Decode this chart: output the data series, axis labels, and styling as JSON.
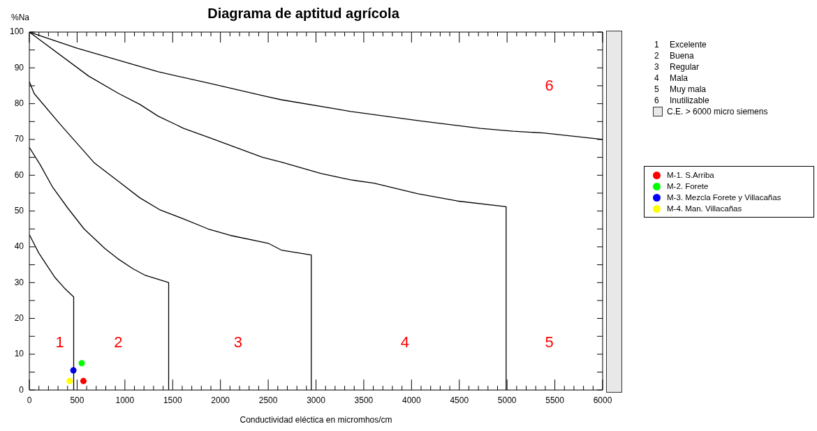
{
  "chart_data": {
    "type": "scatter",
    "title": "Diagrama de aptitud agrícola",
    "xlabel": "Conductividad eléctica en micromhos/cm",
    "ylabel": "%Na",
    "xlim": [
      0,
      6000
    ],
    "xticks": [
      0,
      500,
      1000,
      1500,
      2000,
      2500,
      3000,
      3500,
      4000,
      4500,
      5000,
      5500,
      6000
    ],
    "ylim": [
      0,
      100
    ],
    "yticks": [
      0,
      10,
      20,
      30,
      40,
      50,
      60,
      70,
      80,
      90,
      100
    ],
    "grid": false,
    "legend": "right",
    "series": [
      {
        "type": "line",
        "color": "#000000",
        "marker": "none",
        "x": [
          0,
          100,
          269,
          366,
          464,
          464
        ],
        "values": [
          43.4,
          38.2,
          31.4,
          28.5,
          26.0,
          0
        ]
      },
      {
        "type": "line",
        "color": "#000000",
        "marker": "none",
        "x": [
          0,
          112,
          245,
          403,
          573,
          792,
          925,
          1083,
          1216,
          1458,
          1458
        ],
        "values": [
          67.8,
          63.0,
          56.6,
          50.8,
          45.0,
          39.5,
          36.7,
          33.9,
          32.0,
          30.0,
          0
        ]
      },
      {
        "type": "line",
        "color": "#000000",
        "marker": "none",
        "x": [
          0,
          51,
          330,
          682,
          937,
          1156,
          1362,
          1641,
          1871,
          2102,
          2500,
          2636,
          2951,
          2951
        ],
        "values": [
          86.1,
          82.8,
          74.0,
          63.4,
          58.2,
          53.7,
          50.4,
          47.5,
          45.0,
          43.2,
          41.0,
          39.1,
          37.7,
          0
        ]
      },
      {
        "type": "line",
        "color": "#000000",
        "marker": "none",
        "x": [
          0,
          621,
          937,
          1156,
          1349,
          1616,
          1884,
          2442,
          2636,
          3049,
          3364,
          3607,
          4068,
          4480,
          4990,
          4990
        ],
        "values": [
          100,
          87.7,
          82.8,
          79.8,
          76.5,
          73.1,
          70.5,
          65.0,
          63.7,
          60.5,
          58.7,
          57.8,
          54.8,
          52.8,
          51.2,
          0
        ]
      },
      {
        "type": "line",
        "color": "#000000",
        "marker": "none",
        "x": [
          0,
          500,
          1349,
          1884,
          2466,
          2636,
          3218,
          3364,
          4092,
          4723,
          5063,
          5379,
          6000
        ],
        "values": [
          100,
          95.5,
          88.9,
          85.7,
          82.1,
          81.1,
          78.5,
          77.8,
          75.2,
          73.1,
          72.3,
          71.8,
          70.0
        ]
      },
      {
        "type": "scatter",
        "name": "M-1. S.Arriba",
        "color": "#ff0000",
        "marker": "circle",
        "x": [
          566
        ],
        "values": [
          2.5
        ]
      },
      {
        "type": "scatter",
        "name": "M-2. Forete",
        "color": "#00ff00",
        "marker": "circle",
        "x": [
          548
        ],
        "values": [
          7.5
        ]
      },
      {
        "type": "scatter",
        "name": "M-3. Mezcla Forete y Villacañas",
        "color": "#0000ff",
        "marker": "circle",
        "x": [
          461
        ],
        "values": [
          5.5
        ]
      },
      {
        "type": "scatter",
        "name": "M-4. Man. Villacañas",
        "color": "#ffff00",
        "marker": "circle",
        "x": [
          422
        ],
        "values": [
          2.5
        ]
      }
    ],
    "annotations": [
      "1",
      "2",
      "3",
      "4",
      "5",
      "6",
      "1 Excelente",
      "2 Buena",
      "3 Regular",
      "4 Mala",
      "5 Muy mala",
      "6 Inutilizable",
      "C.E. > 6000 micro siemens"
    ]
  }
}
